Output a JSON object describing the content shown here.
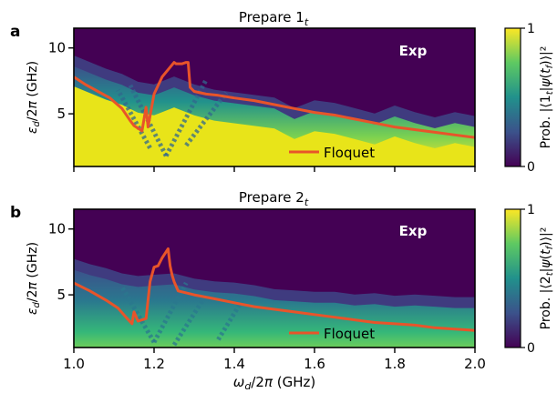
{
  "figure": {
    "shared_xlabel": "ω_d/2π (GHz)",
    "x_ticks": [
      1.0,
      1.2,
      1.4,
      1.6,
      1.8,
      2.0
    ],
    "y_ticks": [
      5,
      10
    ]
  },
  "chart_data": [
    {
      "type": "heatmap",
      "panel_label": "a",
      "title": "Prepare 1_t",
      "annotation": "Exp",
      "xlabel": "",
      "ylabel": "ε_d/2π (GHz)",
      "xlim": [
        1.0,
        2.0
      ],
      "ylim": [
        1.0,
        11.5
      ],
      "colorbar": {
        "label": "Prob. |⟨1_t|ψ(t_f)⟩|²",
        "ticks": [
          "0",
          "1"
        ],
        "colormap": "viridis"
      },
      "legend": {
        "entries": [
          "Floquet"
        ],
        "placement": "bottom-center",
        "line_color": "#e8542a"
      },
      "boundary": {
        "x": [
          1.0,
          1.04,
          1.08,
          1.12,
          1.16,
          1.2,
          1.25,
          1.3,
          1.35,
          1.4,
          1.45,
          1.5,
          1.55,
          1.6,
          1.65,
          1.7,
          1.75,
          1.8,
          1.85,
          1.9,
          1.95,
          2.0
        ],
        "y": [
          8.6,
          8.1,
          7.6,
          7.2,
          6.6,
          6.4,
          7.0,
          6.4,
          6.0,
          5.8,
          5.6,
          5.4,
          4.6,
          5.2,
          5.0,
          4.6,
          4.2,
          4.8,
          4.3,
          3.9,
          4.3,
          4.0
        ]
      },
      "series": [
        {
          "name": "Floquet",
          "color": "#e8542a",
          "x": [
            1.0,
            1.03,
            1.06,
            1.09,
            1.12,
            1.14,
            1.15,
            1.16,
            1.17,
            1.18,
            1.185,
            1.2,
            1.22,
            1.25,
            1.255,
            1.27,
            1.28,
            1.285,
            1.29,
            1.3,
            1.33,
            1.36,
            1.4,
            1.45,
            1.5,
            1.55,
            1.6,
            1.65,
            1.7,
            1.75,
            1.8,
            1.85,
            1.9,
            1.95,
            2.0
          ],
          "y": [
            7.8,
            7.2,
            6.7,
            6.2,
            5.4,
            4.5,
            4.1,
            3.9,
            3.7,
            5.5,
            4.0,
            6.5,
            7.8,
            8.9,
            8.8,
            8.8,
            8.9,
            8.9,
            7.0,
            6.7,
            6.5,
            6.4,
            6.2,
            6.0,
            5.7,
            5.4,
            5.1,
            4.9,
            4.6,
            4.3,
            4.0,
            3.8,
            3.6,
            3.4,
            3.2
          ]
        }
      ]
    },
    {
      "type": "heatmap",
      "panel_label": "b",
      "title": "Prepare 2_t",
      "annotation": "Exp",
      "xlabel": "ω_d/2π (GHz)",
      "ylabel": "ε_d/2π (GHz)",
      "xlim": [
        1.0,
        2.0
      ],
      "ylim": [
        1.0,
        11.5
      ],
      "colorbar": {
        "label": "Prob. |⟨2_t|ψ(t_f)⟩|²",
        "ticks": [
          "0",
          "1"
        ],
        "colormap": "viridis"
      },
      "legend": {
        "entries": [
          "Floquet"
        ],
        "placement": "bottom-right",
        "line_color": "#e8542a"
      },
      "boundary": {
        "x": [
          1.0,
          1.04,
          1.08,
          1.12,
          1.16,
          1.2,
          1.25,
          1.3,
          1.35,
          1.4,
          1.45,
          1.5,
          1.55,
          1.6,
          1.65,
          1.7,
          1.75,
          1.8,
          1.85,
          1.9,
          1.95,
          2.0
        ],
        "y": [
          6.9,
          6.5,
          6.2,
          5.8,
          5.6,
          5.7,
          5.8,
          5.4,
          5.2,
          5.1,
          4.9,
          4.6,
          4.5,
          4.4,
          4.4,
          4.2,
          4.3,
          4.1,
          4.2,
          4.1,
          4.0,
          4.0
        ]
      },
      "series": [
        {
          "name": "Floquet",
          "color": "#e8542a",
          "x": [
            1.0,
            1.04,
            1.08,
            1.11,
            1.13,
            1.145,
            1.15,
            1.16,
            1.18,
            1.19,
            1.2,
            1.21,
            1.22,
            1.235,
            1.24,
            1.245,
            1.25,
            1.26,
            1.3,
            1.35,
            1.4,
            1.45,
            1.5,
            1.55,
            1.6,
            1.65,
            1.7,
            1.75,
            1.8,
            1.85,
            1.9,
            1.95,
            2.0
          ],
          "y": [
            5.9,
            5.3,
            4.6,
            4.0,
            3.3,
            2.8,
            3.7,
            3.0,
            3.2,
            6.0,
            7.1,
            7.2,
            7.8,
            8.5,
            7.2,
            6.5,
            6.0,
            5.3,
            5.0,
            4.7,
            4.4,
            4.1,
            3.9,
            3.7,
            3.5,
            3.3,
            3.1,
            2.9,
            2.8,
            2.7,
            2.5,
            2.4,
            2.3
          ]
        }
      ]
    }
  ]
}
